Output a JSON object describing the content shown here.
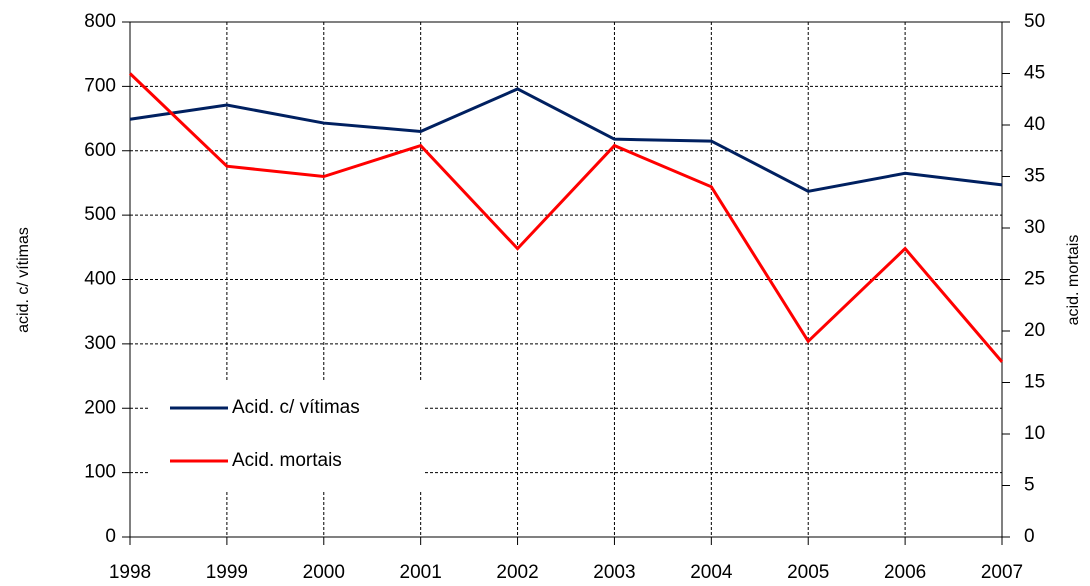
{
  "chart_data": {
    "type": "line",
    "x": [
      1998,
      1999,
      2000,
      2001,
      2002,
      2003,
      2004,
      2005,
      2006,
      2007
    ],
    "xlim": [
      1998,
      2007
    ],
    "xticks": [
      1998,
      1999,
      2000,
      2001,
      2002,
      2003,
      2004,
      2005,
      2006,
      2007
    ],
    "ylim": [
      0,
      800
    ],
    "yticks": [
      0,
      100,
      200,
      300,
      400,
      500,
      600,
      700,
      800
    ],
    "y2lim": [
      0,
      50
    ],
    "y2ticks": [
      0,
      5,
      10,
      15,
      20,
      25,
      30,
      35,
      40,
      45,
      50
    ],
    "y_label": "acid. c/ vítimas",
    "y2_label": "acid. mortais",
    "grid": true,
    "legend": "lower left",
    "series": [
      {
        "name": "Acid. c/ vítimas",
        "color": "#002060",
        "values": [
          649,
          671,
          643,
          630,
          696,
          618,
          615,
          537,
          565,
          547
        ]
      },
      {
        "name": "Acid. mortais",
        "color": "#ff0000",
        "axis": "y2",
        "values": [
          45,
          36,
          35,
          38,
          28,
          38,
          34,
          19,
          28,
          17
        ]
      }
    ]
  }
}
